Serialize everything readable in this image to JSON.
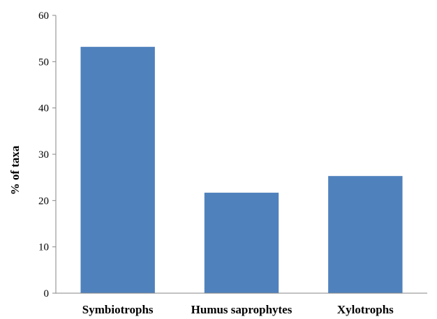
{
  "chart_data": {
    "type": "bar",
    "categories": [
      "Symbiotrophs",
      "Humus saprophytes",
      "Xylotrophs"
    ],
    "values": [
      53.2,
      21.7,
      25.3
    ],
    "title": "",
    "xlabel": "",
    "ylabel": "% of taxa",
    "ylim": [
      0,
      60
    ],
    "yticks": [
      0,
      10,
      20,
      30,
      40,
      50,
      60
    ],
    "grid": false,
    "legend": "none",
    "colors": {
      "bar": "#4f81bd",
      "axis": "#868686"
    }
  }
}
